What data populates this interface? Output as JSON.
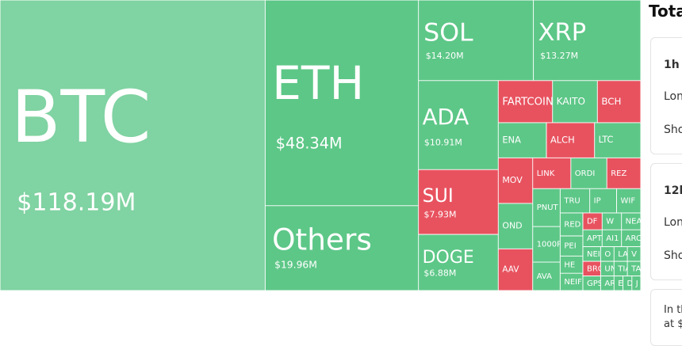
{
  "chart_data": {
    "type": "treemap",
    "categories": [
      "BTC",
      "ETH",
      "Others",
      "SOL",
      "XRP",
      "ADA",
      "SUI",
      "DOGE",
      "FARTCOIN",
      "KAITO",
      "BCH",
      "ENA",
      "ALCH",
      "LTC",
      "MOV",
      "OND",
      "AAV",
      "LINK",
      "ORDI",
      "REZ",
      "PNUT",
      "1000PE",
      "AVA",
      "TRU",
      "IP",
      "WIF",
      "RED",
      "PEI",
      "HE",
      "NEIF",
      "DF",
      "W",
      "NEA",
      "APT",
      "AI1",
      "ARC",
      "NEIR",
      "BRO",
      "GPS",
      "O",
      "LA",
      "V",
      "UN",
      "AR",
      "TIA",
      "TA",
      "E",
      "D",
      "J"
    ],
    "values": [
      118.19,
      48.34,
      19.96,
      14.2,
      13.27,
      10.91,
      7.93,
      6.88,
      3.5,
      2.9,
      2.8,
      2.6,
      2.6,
      2.5,
      2.4,
      2.4,
      2.2,
      1.8,
      1.7,
      1.6,
      1.6,
      1.5,
      1.2,
      1.1,
      1.0,
      0.9,
      0.8,
      0.7,
      0.6,
      0.6,
      0.5,
      0.5,
      0.5,
      0.5,
      0.5,
      0.5,
      0.4,
      0.4,
      0.4,
      0.3,
      0.3,
      0.3,
      0.3,
      0.3,
      0.3,
      0.3,
      0.2,
      0.2,
      0.2
    ],
    "value_labels": [
      "$118.19M",
      "$48.34M",
      "$19.96M",
      "$14.20M",
      "$13.27M",
      "$10.91M",
      "$7.93M",
      "$6.88M",
      null,
      null,
      null,
      null,
      null,
      null,
      null,
      null,
      null,
      null,
      null,
      null,
      null,
      null,
      null,
      null,
      null,
      null,
      null,
      null,
      null,
      null,
      null,
      null,
      null,
      null,
      null,
      null,
      null,
      null,
      null,
      null,
      null,
      null,
      null,
      null,
      null,
      null,
      null,
      null,
      null
    ],
    "colors": [
      "#80d3a2",
      "#5dc787",
      "#5dc787",
      "#5dc787",
      "#5dc787",
      "#5dc787",
      "#e8525f",
      "#5dc787",
      "#e8525f",
      "#5dc787",
      "#e8525f",
      "#5dc787",
      "#e8525f",
      "#5dc787",
      "#e8525f",
      "#5dc787",
      "#e8525f",
      "#e8525f",
      "#5dc787",
      "#e8525f",
      "#5dc787",
      "#5dc787",
      "#5dc787",
      "#5dc787",
      "#5dc787",
      "#5dc787",
      "#5dc787",
      "#5dc787",
      "#5dc787",
      "#5dc787",
      "#e8525f",
      "#5dc787",
      "#5dc787",
      "#5dc787",
      "#5dc787",
      "#5dc787",
      "#5dc787",
      "#e8525f",
      "#5dc787",
      "#5dc787",
      "#5dc787",
      "#5dc787",
      "#5dc787",
      "#5dc787",
      "#5dc787",
      "#5dc787",
      "#5dc787",
      "#5dc787",
      "#5dc787"
    ]
  },
  "panel": {
    "title": "Tota",
    "cards": [
      [
        "1h",
        "Lon",
        "Sho"
      ],
      [
        "12h",
        "Lon",
        "Sho"
      ],
      [
        "In th",
        "at $"
      ]
    ]
  }
}
